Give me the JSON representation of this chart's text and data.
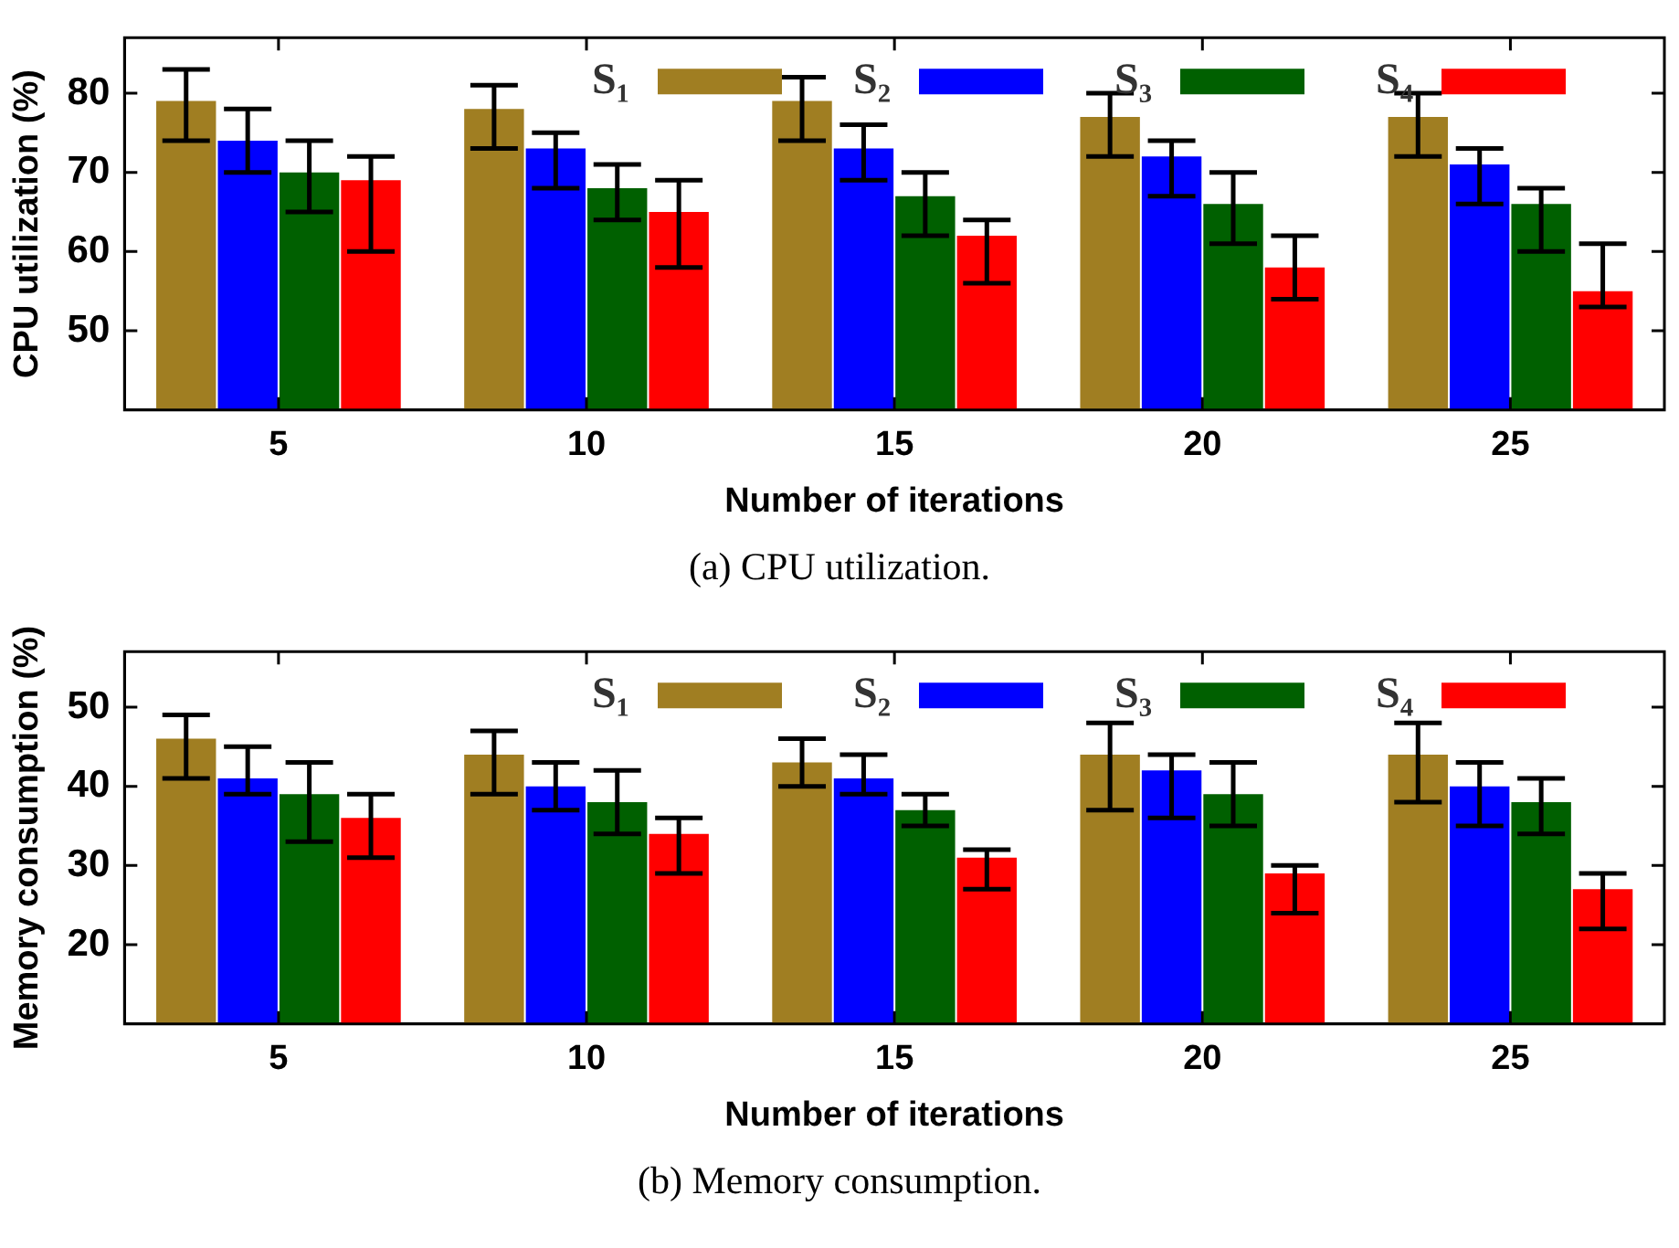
{
  "chart_data": [
    {
      "type": "bar",
      "xlabel": "Number of iterations",
      "ylabel": "CPU utilization (%)",
      "annotations": [
        "(a) CPU utilization."
      ],
      "categories": [
        "5",
        "10",
        "15",
        "20",
        "25"
      ],
      "ylim": [
        40,
        87
      ],
      "yticks": [
        50,
        60,
        70,
        80
      ],
      "grid": false,
      "legend": "top right",
      "series": [
        {
          "name": "S₁",
          "color": "#a07e22",
          "values": [
            79,
            78,
            79,
            77,
            77
          ],
          "errors": [
            [
              74,
              83
            ],
            [
              73,
              81
            ],
            [
              74,
              82
            ],
            [
              72,
              80
            ],
            [
              72,
              80
            ]
          ]
        },
        {
          "name": "S₂",
          "color": "#0000ff",
          "values": [
            74,
            73,
            73,
            72,
            71
          ],
          "errors": [
            [
              70,
              78
            ],
            [
              68,
              75
            ],
            [
              69,
              76
            ],
            [
              67,
              74
            ],
            [
              66,
              73
            ]
          ]
        },
        {
          "name": "S₃",
          "color": "#006000",
          "values": [
            70,
            68,
            67,
            66,
            66
          ],
          "errors": [
            [
              65,
              74
            ],
            [
              64,
              71
            ],
            [
              62,
              70
            ],
            [
              61,
              70
            ],
            [
              60,
              68
            ]
          ]
        },
        {
          "name": "S₄",
          "color": "#ff0000",
          "values": [
            69,
            65,
            62,
            58,
            55
          ],
          "errors": [
            [
              60,
              72
            ],
            [
              58,
              69
            ],
            [
              56,
              64
            ],
            [
              54,
              62
            ],
            [
              53,
              61
            ]
          ]
        }
      ]
    },
    {
      "type": "bar",
      "xlabel": "Number of iterations",
      "ylabel": "Memory consumption (%)",
      "annotations": [
        "(b) Memory consumption."
      ],
      "categories": [
        "5",
        "10",
        "15",
        "20",
        "25"
      ],
      "ylim": [
        10,
        57
      ],
      "yticks": [
        20,
        30,
        40,
        50
      ],
      "grid": false,
      "legend": "top right",
      "series": [
        {
          "name": "S₁",
          "color": "#a07e22",
          "values": [
            46,
            44,
            43,
            44,
            44
          ],
          "errors": [
            [
              41,
              49
            ],
            [
              39,
              47
            ],
            [
              40,
              46
            ],
            [
              37,
              48
            ],
            [
              38,
              48
            ]
          ]
        },
        {
          "name": "S₂",
          "color": "#0000ff",
          "values": [
            41,
            40,
            41,
            42,
            40
          ],
          "errors": [
            [
              39,
              45
            ],
            [
              37,
              43
            ],
            [
              39,
              44
            ],
            [
              36,
              44
            ],
            [
              35,
              43
            ]
          ]
        },
        {
          "name": "S₃",
          "color": "#006000",
          "values": [
            39,
            38,
            37,
            39,
            38
          ],
          "errors": [
            [
              33,
              43
            ],
            [
              34,
              42
            ],
            [
              35,
              39
            ],
            [
              35,
              43
            ],
            [
              34,
              41
            ]
          ]
        },
        {
          "name": "S₄",
          "color": "#ff0000",
          "values": [
            36,
            34,
            31,
            29,
            27
          ],
          "errors": [
            [
              31,
              39
            ],
            [
              29,
              36
            ],
            [
              27,
              32
            ],
            [
              24,
              30
            ],
            [
              22,
              29
            ]
          ]
        }
      ]
    }
  ]
}
